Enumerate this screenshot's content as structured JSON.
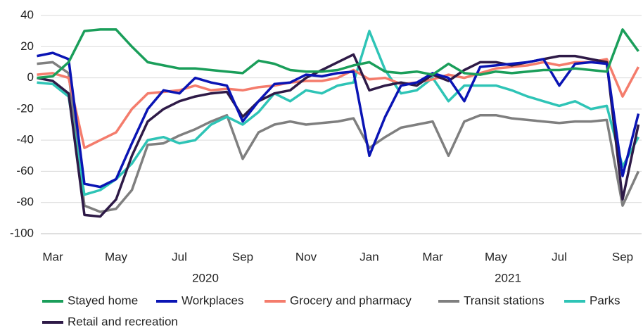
{
  "chart_data": {
    "type": "line",
    "categories": [
      null,
      "Mar",
      null,
      null,
      null,
      "May",
      null,
      null,
      null,
      "Jul",
      null,
      null,
      null,
      "Sep",
      null,
      null,
      null,
      "Nov",
      null,
      null,
      null,
      "Jan",
      null,
      null,
      null,
      "Mar",
      null,
      null,
      null,
      "May",
      null,
      null,
      null,
      "Jul",
      null,
      null,
      null,
      "Sep",
      null
    ],
    "x_group_labels": [
      "2020",
      "2021"
    ],
    "ylim": [
      -100,
      40
    ],
    "yticks": [
      -100,
      -80,
      -60,
      -40,
      -20,
      0,
      20,
      40
    ],
    "grid": true,
    "legend": "bottom",
    "series": [
      {
        "name": "Stayed home",
        "color": "#1a9e5a",
        "values": [
          0,
          1,
          10,
          30,
          31,
          31,
          20,
          10,
          8,
          6,
          6,
          5,
          4,
          3,
          11,
          9,
          5,
          4,
          4,
          5,
          8,
          10,
          4,
          3,
          4,
          2,
          9,
          3,
          2,
          4,
          3,
          4,
          5,
          5,
          6,
          5,
          4,
          31,
          17
        ]
      },
      {
        "name": "Workplaces",
        "color": "#0a14b4",
        "values": [
          14,
          16,
          12,
          -68,
          -70,
          -65,
          -42,
          -20,
          -8,
          -10,
          0,
          -3,
          -5,
          -28,
          -15,
          -4,
          -3,
          2,
          1,
          3,
          4,
          -50,
          -25,
          -5,
          -3,
          3,
          0,
          -15,
          7,
          8,
          9,
          10,
          12,
          -5,
          9,
          10,
          9,
          -63,
          -23
        ]
      },
      {
        "name": "Grocery and pharmacy",
        "color": "#f47c6c",
        "values": [
          2,
          3,
          0,
          -45,
          -40,
          -35,
          -20,
          -10,
          -9,
          -8,
          -5,
          -8,
          -7,
          -8,
          -6,
          -5,
          -3,
          -2,
          -2,
          0,
          5,
          -1,
          0,
          -4,
          -3,
          -1,
          2,
          0,
          3,
          6,
          7,
          8,
          10,
          8,
          10,
          10,
          12,
          -12,
          7
        ]
      },
      {
        "name": "Transit stations",
        "color": "#7f7f7f",
        "values": [
          9,
          10,
          3,
          -82,
          -86,
          -84,
          -72,
          -43,
          -42,
          -37,
          -33,
          -28,
          -24,
          -52,
          -35,
          -30,
          -28,
          -30,
          -29,
          -28,
          -26,
          -45,
          -38,
          -32,
          -30,
          -28,
          -50,
          -28,
          -24,
          -24,
          -26,
          -27,
          -28,
          -29,
          -28,
          -28,
          -27,
          -82,
          -60
        ]
      },
      {
        "name": "Parks",
        "color": "#2ec4b6",
        "values": [
          -3,
          -4,
          -12,
          -75,
          -72,
          -65,
          -55,
          -40,
          -38,
          -42,
          -40,
          -30,
          -25,
          -30,
          -22,
          -10,
          -15,
          -8,
          -10,
          -5,
          -3,
          30,
          5,
          -10,
          -8,
          0,
          -15,
          -5,
          -5,
          -5,
          -8,
          -12,
          -15,
          -18,
          -15,
          -20,
          -18,
          -57,
          -38
        ]
      },
      {
        "name": "Retail and recreation",
        "color": "#2e1a47",
        "values": [
          0,
          -2,
          -10,
          -88,
          -89,
          -78,
          -50,
          -28,
          -20,
          -15,
          -12,
          -10,
          -9,
          -25,
          -15,
          -10,
          -8,
          0,
          5,
          10,
          15,
          -8,
          -5,
          -3,
          -5,
          2,
          -2,
          5,
          10,
          10,
          8,
          10,
          12,
          14,
          14,
          12,
          10,
          -78,
          -30
        ]
      }
    ]
  }
}
